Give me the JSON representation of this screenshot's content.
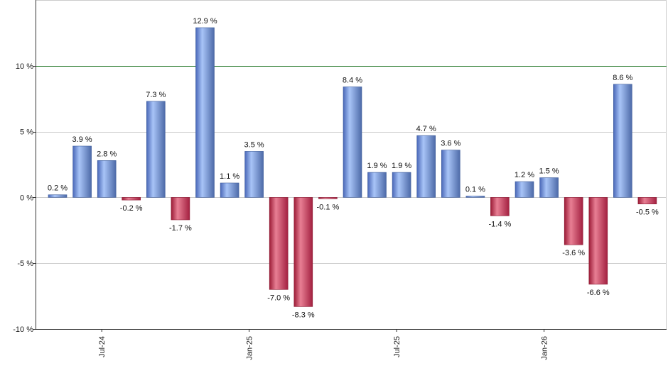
{
  "chart_data": {
    "type": "bar",
    "value_suffix": " %",
    "values": [
      0.2,
      3.9,
      2.8,
      -0.2,
      7.3,
      -1.7,
      12.9,
      1.1,
      3.5,
      -7.0,
      -8.3,
      -0.1,
      8.4,
      1.9,
      1.9,
      4.7,
      3.6,
      0.1,
      -1.4,
      1.2,
      1.5,
      -3.6,
      -6.6,
      8.6,
      -0.5
    ],
    "labels": [
      "0.2 %",
      "3.9 %",
      "2.8 %",
      "-0.2 %",
      "7.3 %",
      "-1.7 %",
      "12.9 %",
      "1.1 %",
      "3.5 %",
      "-7.0 %",
      "-8.3 %",
      "-0.1 %",
      "8.4 %",
      "1.9 %",
      "1.9 %",
      "4.7 %",
      "3.6 %",
      "0.1 %",
      "-1.4 %",
      "1.2 %",
      "1.5 %",
      "-3.6 %",
      "-6.6 %",
      "8.6 %",
      "-0.5 %"
    ],
    "x_ticks": [
      {
        "label": "Jul-24",
        "index": 2
      },
      {
        "label": "Jan-25",
        "index": 8
      },
      {
        "label": "Jul-25",
        "index": 14
      },
      {
        "label": "Jan-26",
        "index": 20
      }
    ],
    "y_ticks": [
      {
        "value": 10,
        "label": "10 %"
      },
      {
        "value": 5,
        "label": "5 %"
      },
      {
        "value": 0,
        "label": "0 %"
      },
      {
        "value": -5,
        "label": "-5 %"
      },
      {
        "value": -10,
        "label": "-10 %"
      }
    ],
    "ylim": [
      -10,
      15
    ],
    "reference_line": 10,
    "grid": true,
    "colors": {
      "positive": "#7f9fe0",
      "negative": "#c8304f",
      "reference": "#2e7d32",
      "grid": "#cccccc",
      "axis": "#333333"
    }
  }
}
